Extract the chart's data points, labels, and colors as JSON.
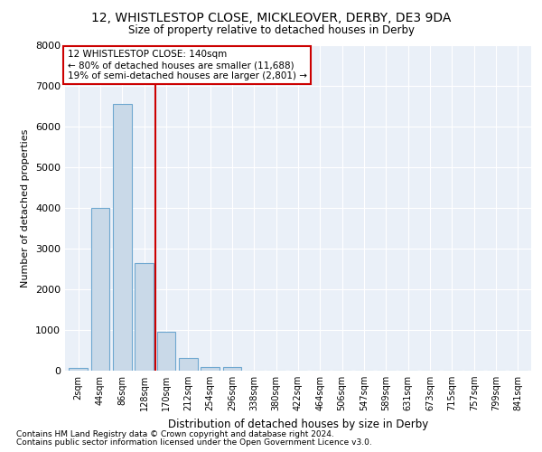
{
  "title": "12, WHISTLESTOP CLOSE, MICKLEOVER, DERBY, DE3 9DA",
  "subtitle": "Size of property relative to detached houses in Derby",
  "xlabel": "Distribution of detached houses by size in Derby",
  "ylabel": "Number of detached properties",
  "bar_labels": [
    "2sqm",
    "44sqm",
    "86sqm",
    "128sqm",
    "170sqm",
    "212sqm",
    "254sqm",
    "296sqm",
    "338sqm",
    "380sqm",
    "422sqm",
    "464sqm",
    "506sqm",
    "547sqm",
    "589sqm",
    "631sqm",
    "673sqm",
    "715sqm",
    "757sqm",
    "799sqm",
    "841sqm"
  ],
  "bar_values": [
    70,
    4000,
    6550,
    2650,
    950,
    310,
    100,
    100,
    0,
    0,
    0,
    0,
    0,
    0,
    0,
    0,
    0,
    0,
    0,
    0,
    0
  ],
  "bar_color": "#c9d9e8",
  "bar_edgecolor": "#6fa8d0",
  "ylim": [
    0,
    8000
  ],
  "yticks": [
    0,
    1000,
    2000,
    3000,
    4000,
    5000,
    6000,
    7000,
    8000
  ],
  "vline_x": 3.5,
  "vline_color": "#cc0000",
  "annotation_text": "12 WHISTLESTOP CLOSE: 140sqm\n← 80% of detached houses are smaller (11,688)\n19% of semi-detached houses are larger (2,801) →",
  "annotation_box_color": "#ffffff",
  "annotation_box_edgecolor": "#cc0000",
  "footnote1": "Contains HM Land Registry data © Crown copyright and database right 2024.",
  "footnote2": "Contains public sector information licensed under the Open Government Licence v3.0.",
  "plot_bg_color": "#eaf0f8"
}
